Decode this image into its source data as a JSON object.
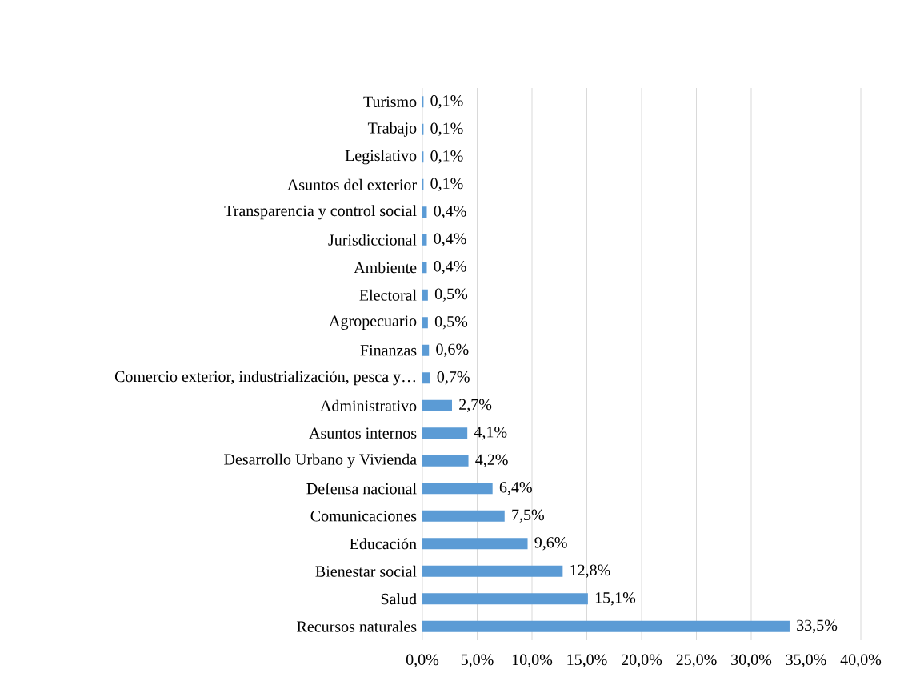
{
  "chart_data": {
    "type": "bar",
    "orientation": "horizontal",
    "categories": [
      "Turismo",
      "Trabajo",
      "Legislativo",
      "Asuntos del exterior",
      "Transparencia y control social",
      "Jurisdiccional",
      "Ambiente",
      "Electoral",
      "Agropecuario",
      "Finanzas",
      "Comercio exterior, industrialización, pesca y…",
      "Administrativo",
      "Asuntos internos",
      "Desarrollo Urbano y Vivienda",
      "Defensa nacional",
      "Comunicaciones",
      "Educación",
      "Bienestar social",
      "Salud",
      "Recursos naturales"
    ],
    "values": [
      0.1,
      0.1,
      0.1,
      0.1,
      0.4,
      0.4,
      0.4,
      0.5,
      0.5,
      0.6,
      0.7,
      2.7,
      4.1,
      4.2,
      6.4,
      7.5,
      9.6,
      12.8,
      15.1,
      33.5
    ],
    "value_labels": [
      "0,1%",
      "0,1%",
      "0,1%",
      "0,1%",
      "0,4%",
      "0,4%",
      "0,4%",
      "0,5%",
      "0,5%",
      "0,6%",
      "0,7%",
      "2,7%",
      "4,1%",
      "4,2%",
      "6,4%",
      "7,5%",
      "9,6%",
      "12,8%",
      "15,1%",
      "33,5%"
    ],
    "color": "#5b9bd5",
    "xlim": [
      0,
      40
    ],
    "xticks": [
      {
        "value": 0,
        "label": "0,0%"
      },
      {
        "value": 5,
        "label": "5,0%"
      },
      {
        "value": 10,
        "label": "10,0%"
      },
      {
        "value": 15,
        "label": "15,0%"
      },
      {
        "value": 20,
        "label": "20,0%"
      },
      {
        "value": 25,
        "label": "25,0%"
      },
      {
        "value": 30,
        "label": "30,0%"
      },
      {
        "value": 35,
        "label": "35,0%"
      },
      {
        "value": 40,
        "label": "40,0%"
      }
    ],
    "grid": "x"
  }
}
